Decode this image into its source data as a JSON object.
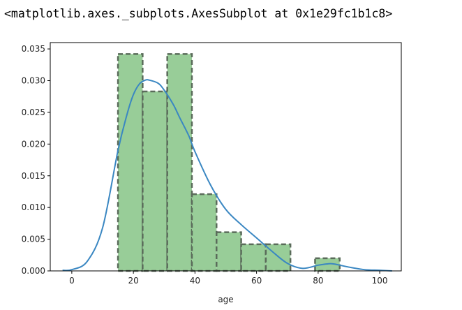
{
  "output_repr": "<matplotlib.axes._subplots.AxesSubplot at 0x1e29fc1b1c8>",
  "chart_data": {
    "type": "bar",
    "subtype": "histogram_with_kde",
    "title": "",
    "xlabel": "age",
    "ylabel": "",
    "xlim": [
      -7,
      107
    ],
    "ylim": [
      0,
      0.036
    ],
    "xticks": [
      0,
      20,
      40,
      60,
      80,
      100
    ],
    "yticks": [
      0.0,
      0.005,
      0.01,
      0.015,
      0.02,
      0.025,
      0.03,
      0.035
    ],
    "xtick_labels": [
      "0",
      "20",
      "40",
      "60",
      "80",
      "100"
    ],
    "ytick_labels": [
      "0.000",
      "0.005",
      "0.010",
      "0.015",
      "0.020",
      "0.025",
      "0.030",
      "0.035"
    ],
    "grid": false,
    "bins": [
      {
        "x0": 15,
        "x1": 23,
        "density": 0.0342
      },
      {
        "x0": 23,
        "x1": 31,
        "density": 0.0283
      },
      {
        "x0": 31,
        "x1": 39,
        "density": 0.0342
      },
      {
        "x0": 39,
        "x1": 47,
        "density": 0.0121
      },
      {
        "x0": 47,
        "x1": 55,
        "density": 0.0061
      },
      {
        "x0": 55,
        "x1": 63,
        "density": 0.0042
      },
      {
        "x0": 63,
        "x1": 71,
        "density": 0.0042
      },
      {
        "x0": 71,
        "x1": 79,
        "density": 0.0
      },
      {
        "x0": 79,
        "x1": 87,
        "density": 0.002
      }
    ],
    "kde": {
      "x": [
        -3,
        0,
        5,
        10,
        15,
        18,
        20,
        22,
        24,
        25,
        28,
        30,
        33,
        35,
        38,
        40,
        45,
        50,
        55,
        60,
        65,
        70,
        75,
        80,
        83,
        85,
        90,
        95,
        100,
        104
      ],
      "y": [
        0.0001,
        0.0002,
        0.0015,
        0.0068,
        0.019,
        0.0248,
        0.0278,
        0.0295,
        0.0301,
        0.0301,
        0.0296,
        0.0285,
        0.0262,
        0.0242,
        0.0213,
        0.0188,
        0.0136,
        0.0097,
        0.0073,
        0.0052,
        0.0031,
        0.0012,
        0.0004,
        0.0009,
        0.0011,
        0.0011,
        0.0006,
        0.0002,
        0.0001,
        0.0
      ]
    },
    "colors": {
      "bar_fill": "#98cd98",
      "bar_edge": "#5a6b5a",
      "kde_line": "#3a87c2",
      "axis": "#000000"
    }
  }
}
